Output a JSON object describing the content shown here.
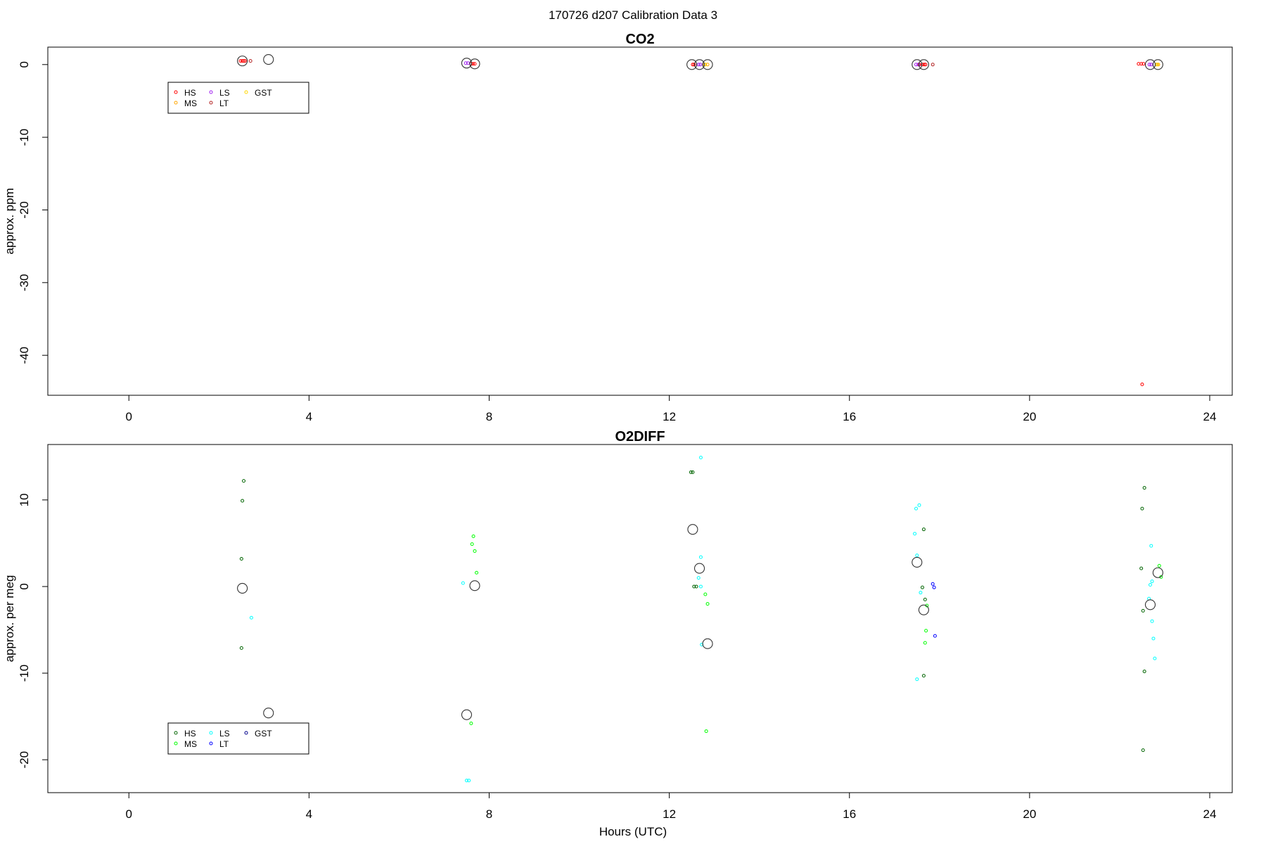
{
  "figure": {
    "title": "170726   d207   Calibration Data 3",
    "xlabel": "Hours (UTC)"
  },
  "chart_data": [
    {
      "type": "scatter",
      "title": "CO2",
      "xlabel": "",
      "ylabel": "approx. ppm",
      "xlim": [
        -1.8,
        24.5
      ],
      "ylim": [
        -45.5,
        2.4
      ],
      "xticks": [
        0,
        4,
        8,
        12,
        16,
        20,
        24
      ],
      "xtick_labels": [
        "0",
        "4",
        "8",
        "12",
        "16",
        "20",
        "24"
      ],
      "yticks": [
        0,
        -10,
        -20,
        -30,
        -40
      ],
      "ytick_labels": [
        "0",
        "-10",
        "-20",
        "-30",
        "-40"
      ],
      "legend": {
        "placement": "top-left",
        "entries": [
          {
            "label": "HS",
            "color": "#ff0000"
          },
          {
            "label": "MS",
            "color": "#ffa500"
          },
          {
            "label": "LS",
            "color": "#a020f0"
          },
          {
            "label": "LT",
            "color": "#b22222"
          },
          {
            "label": "GST",
            "color": "#ffd700"
          }
        ]
      },
      "series": [
        {
          "name": "HS",
          "color": "#ff0000",
          "points": [
            [
              2.48,
              0.5
            ],
            [
              2.52,
              0.5
            ],
            [
              2.55,
              0.5
            ],
            [
              2.58,
              0.5
            ],
            [
              7.6,
              0.1
            ],
            [
              7.64,
              0.1
            ],
            [
              7.68,
              0.1
            ],
            [
              12.52,
              0.0
            ],
            [
              12.55,
              0.0
            ],
            [
              17.55,
              0.0
            ],
            [
              17.62,
              0.0
            ],
            [
              17.66,
              0.0
            ],
            [
              17.69,
              0.0
            ],
            [
              22.42,
              0.1
            ],
            [
              22.48,
              0.1
            ],
            [
              22.53,
              0.1
            ],
            [
              22.5,
              -44.0
            ]
          ]
        },
        {
          "name": "MS",
          "color": "#ffa500",
          "points": [
            [
              12.78,
              0.0
            ],
            [
              12.85,
              0.0
            ],
            [
              22.82,
              0.0
            ],
            [
              22.86,
              0.0
            ]
          ]
        },
        {
          "name": "LS",
          "color": "#a020f0",
          "points": [
            [
              7.48,
              0.2
            ],
            [
              7.53,
              0.2
            ],
            [
              12.65,
              0.0
            ],
            [
              12.69,
              0.0
            ],
            [
              17.48,
              0.0
            ],
            [
              17.53,
              0.0
            ],
            [
              22.66,
              0.0
            ],
            [
              22.7,
              0.0
            ]
          ]
        },
        {
          "name": "LT",
          "color": "#b22222",
          "points": [
            [
              2.7,
              0.5
            ],
            [
              17.85,
              0.0
            ]
          ]
        },
        {
          "name": "GST",
          "color": "#ffd700",
          "points": [
            [
              12.8,
              0.0
            ],
            [
              22.84,
              0.0
            ]
          ]
        },
        {
          "name": "",
          "color": "#333333",
          "marker": "large-circle",
          "points": [
            [
              2.52,
              0.5
            ],
            [
              3.1,
              0.7
            ],
            [
              7.5,
              0.2
            ],
            [
              7.68,
              0.1
            ],
            [
              12.5,
              0.0
            ],
            [
              12.67,
              0.0
            ],
            [
              12.85,
              0.0
            ],
            [
              17.5,
              0.0
            ],
            [
              17.65,
              0.0
            ],
            [
              22.68,
              0.0
            ],
            [
              22.85,
              0.0
            ]
          ]
        }
      ]
    },
    {
      "type": "scatter",
      "title": "O2DIFF",
      "xlabel": "Hours (UTC)",
      "ylabel": "approx. per meg",
      "xlim": [
        -1.8,
        24.5
      ],
      "ylim": [
        -23.8,
        16.4
      ],
      "xticks": [
        0,
        4,
        8,
        12,
        16,
        20,
        24
      ],
      "xtick_labels": [
        "0",
        "4",
        "8",
        "12",
        "16",
        "20",
        "24"
      ],
      "yticks": [
        10,
        0,
        -10,
        -20
      ],
      "ytick_labels": [
        "10",
        "0",
        "-10",
        "-20"
      ],
      "legend": {
        "placement": "bottom-left",
        "entries": [
          {
            "label": "HS",
            "color": "#006400"
          },
          {
            "label": "MS",
            "color": "#00ff00"
          },
          {
            "label": "LS",
            "color": "#00ffff"
          },
          {
            "label": "LT",
            "color": "#0000ff"
          },
          {
            "label": "GST",
            "color": "#00008b"
          }
        ]
      },
      "series": [
        {
          "name": "HS",
          "color": "#006400",
          "points": [
            [
              2.55,
              12.2
            ],
            [
              2.52,
              9.9
            ],
            [
              2.5,
              3.2
            ],
            [
              2.5,
              -7.1
            ],
            [
              12.48,
              13.2
            ],
            [
              12.52,
              13.2
            ],
            [
              12.55,
              0.0
            ],
            [
              12.6,
              0.0
            ],
            [
              17.65,
              6.6
            ],
            [
              17.62,
              -0.1
            ],
            [
              17.68,
              -1.5
            ],
            [
              17.65,
              -10.3
            ],
            [
              22.55,
              11.4
            ],
            [
              22.5,
              9.0
            ],
            [
              22.48,
              2.1
            ],
            [
              22.52,
              -2.8
            ],
            [
              22.55,
              -9.8
            ],
            [
              22.52,
              -18.9
            ]
          ]
        },
        {
          "name": "MS",
          "color": "#00ff00",
          "points": [
            [
              7.65,
              5.8
            ],
            [
              7.62,
              4.9
            ],
            [
              7.68,
              4.1
            ],
            [
              7.72,
              1.6
            ],
            [
              7.6,
              -15.8
            ],
            [
              12.8,
              -0.9
            ],
            [
              12.85,
              -2.0
            ],
            [
              12.82,
              -16.7
            ],
            [
              17.72,
              -2.2
            ],
            [
              17.7,
              -5.1
            ],
            [
              17.68,
              -6.5
            ],
            [
              22.88,
              2.4
            ],
            [
              22.92,
              1.1
            ]
          ]
        },
        {
          "name": "LS",
          "color": "#00ffff",
          "points": [
            [
              7.42,
              0.4
            ],
            [
              7.5,
              -22.4
            ],
            [
              7.55,
              -22.4
            ],
            [
              2.72,
              -3.6
            ],
            [
              12.7,
              14.9
            ],
            [
              12.7,
              3.4
            ],
            [
              12.65,
              1.0
            ],
            [
              12.7,
              0.0
            ],
            [
              12.72,
              -6.7
            ],
            [
              17.45,
              6.1
            ],
            [
              17.48,
              9.0
            ],
            [
              17.55,
              9.4
            ],
            [
              17.5,
              3.6
            ],
            [
              17.58,
              -0.7
            ],
            [
              17.5,
              -10.7
            ],
            [
              22.7,
              4.7
            ],
            [
              22.72,
              0.6
            ],
            [
              22.68,
              0.2
            ],
            [
              22.65,
              -1.4
            ],
            [
              22.72,
              -4.0
            ],
            [
              22.75,
              -6.0
            ],
            [
              22.78,
              -8.3
            ]
          ]
        },
        {
          "name": "LT",
          "color": "#0000ff",
          "points": [
            [
              17.85,
              0.3
            ],
            [
              17.88,
              -0.1
            ],
            [
              17.9,
              -5.7
            ]
          ]
        },
        {
          "name": "GST",
          "color": "#00008b",
          "points": []
        },
        {
          "name": "",
          "color": "#333333",
          "marker": "large-circle",
          "points": [
            [
              2.52,
              -0.2
            ],
            [
              3.1,
              -14.6
            ],
            [
              7.5,
              -14.8
            ],
            [
              7.68,
              0.1
            ],
            [
              12.52,
              6.6
            ],
            [
              12.67,
              2.1
            ],
            [
              12.85,
              -6.6
            ],
            [
              17.5,
              2.8
            ],
            [
              17.65,
              -2.7
            ],
            [
              22.68,
              -2.1
            ],
            [
              22.85,
              1.6
            ]
          ]
        }
      ]
    }
  ]
}
